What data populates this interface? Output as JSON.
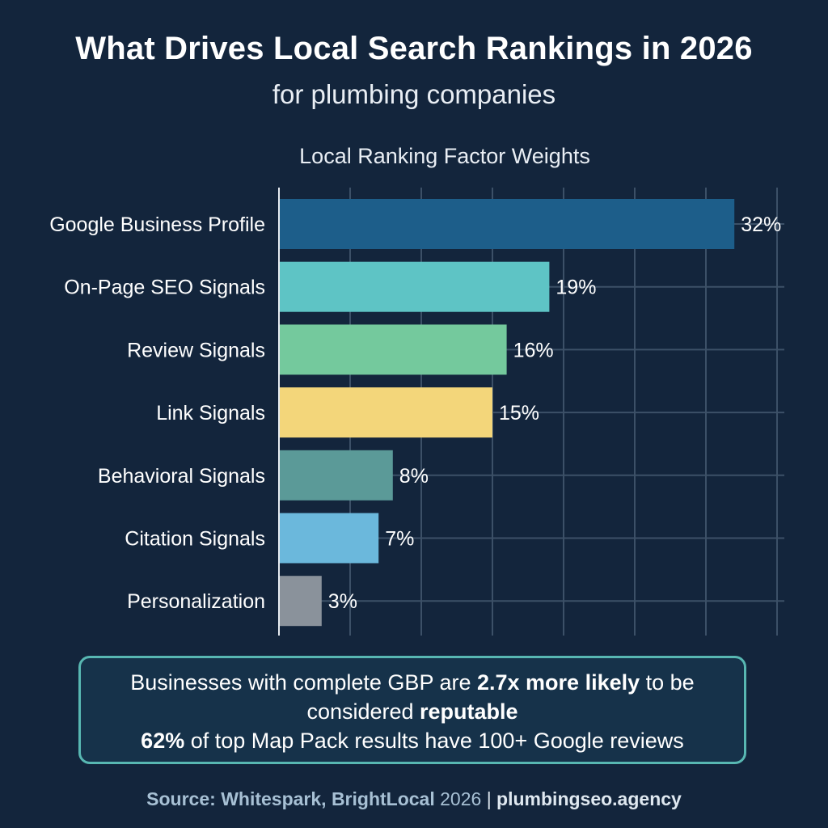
{
  "header": {
    "title": "What Drives Local Search Rankings in 2026",
    "subtitle": "for plumbing companies"
  },
  "chart_data": {
    "type": "bar",
    "orientation": "horizontal",
    "title": "Local Ranking Factor Weights",
    "xlabel": "",
    "ylabel": "",
    "xlim": [
      0,
      36
    ],
    "grid": true,
    "categories": [
      "Google Business Profile",
      "On-Page SEO Signals",
      "Review Signals",
      "Link Signals",
      "Behavioral Signals",
      "Citation Signals",
      "Personalization"
    ],
    "values": [
      32,
      19,
      16,
      15,
      8,
      7,
      3
    ],
    "value_labels": [
      "32%",
      "19%",
      "16%",
      "15%",
      "8%",
      "7%",
      "3%"
    ],
    "colors": [
      "#1d5e8a",
      "#5ec4c5",
      "#74c99d",
      "#f3d67a",
      "#5b9a98",
      "#6bb8dc",
      "#8a929b"
    ]
  },
  "callout": {
    "line1_a": "Businesses with complete GBP are ",
    "line1_b": "2.7x more likely",
    "line1_c": " to be",
    "line2_a": "considered ",
    "line2_b": "reputable",
    "line3_a": "62%",
    "line3_b": " of top Map Pack results have 100+ Google reviews"
  },
  "footer": {
    "source_label": "Source: Whitespark, BrightLocal",
    "source_year": " 2026 ",
    "separator": "|",
    "site": " plumbingseo.agency"
  }
}
